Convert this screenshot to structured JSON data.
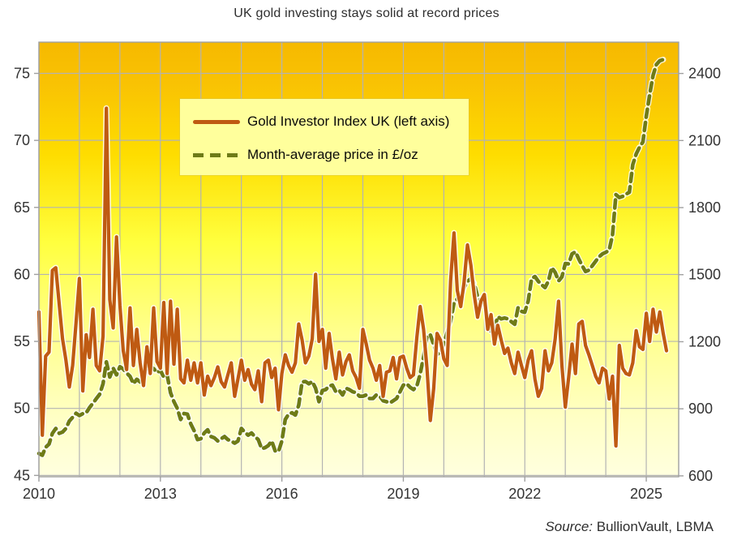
{
  "title": "UK gold investing stays solid at record prices",
  "source": {
    "label": "Source:",
    "value": "BullionVault, LBMA"
  },
  "legend": {
    "items": [
      {
        "label": "Gold Investor Index UK (left axis)",
        "line_style": "solid",
        "color": "#bf5a12"
      },
      {
        "label": "Month-average price in £/oz",
        "line_style": "dashed",
        "color": "#6e7b17"
      }
    ]
  },
  "colors": {
    "index_line": "#bf5a12",
    "price_line": "#6e7b17",
    "grid": "#b3b3b3",
    "plot_border": "#a0a0a0",
    "axis_text": "#333333",
    "halo": "#ffffff",
    "legend_bg": "#ffff9c",
    "plot_gradient": [
      "#f6b900",
      "#f9c303",
      "#fedd00",
      "#ffff3e",
      "#ffff8a",
      "#ffffc4",
      "#ffffdf"
    ]
  },
  "chart_data": {
    "type": "line",
    "title": "UK gold investing stays solid at record prices",
    "x_axis": {
      "start_year": 2010,
      "start_month": 1,
      "months_per_point": 1,
      "tick_years": [
        2010,
        2013,
        2016,
        2019,
        2022,
        2025
      ],
      "gridline_every_years": 1,
      "gridline_years": [
        2010,
        2011,
        2012,
        2013,
        2014,
        2015,
        2016,
        2017,
        2018,
        2019,
        2020,
        2021,
        2022,
        2023,
        2024,
        2025
      ],
      "range": [
        2010,
        2025.8
      ]
    },
    "left_axis": {
      "label": "Gold Investor Index UK",
      "ticks": [
        45,
        50,
        55,
        60,
        65,
        70,
        75
      ],
      "range": [
        44.9,
        77.33
      ]
    },
    "right_axis": {
      "label": "Month-average gold price in £/oz",
      "ticks": [
        600,
        900,
        1200,
        1500,
        1800,
        2100,
        2400
      ],
      "range": [
        596,
        2540
      ]
    },
    "series": [
      {
        "name": "Month-average price in £/oz",
        "axis": "right",
        "style": "dashed",
        "color": "#6e7b17",
        "monthly_values": [
          700,
          692,
          728,
          742,
          790,
          812,
          790,
          796,
          812,
          845,
          862,
          880,
          870,
          878,
          882,
          905,
          925,
          945,
          965,
          1012,
          1110,
          1042,
          1082,
          1052,
          1088,
          1078,
          1060,
          1045,
          1012,
          1032,
          1020,
          1035,
          1092,
          1088,
          1080,
          1062,
          1071,
          1042,
          1052,
          972,
          932,
          902,
          852,
          879,
          876,
          832,
          802,
          762,
          766,
          792,
          806,
          776,
          770,
          756,
          766,
          776,
          762,
          756,
          746,
          756,
          812,
          796,
          782,
          792,
          776,
          762,
          722,
          726,
          736,
          756,
          712,
          709,
          756,
          852,
          876,
          882,
          872,
          916,
          1020,
          1022,
          1012,
          1022,
          992,
          932,
          982,
          986,
          1002,
          1006,
          976,
          982,
          962,
          992,
          986,
          976,
          972,
          956,
          956,
          962,
          946,
          946,
          962,
          956,
          936,
          932,
          926,
          936,
          946,
          976,
          1006,
          1012,
          996,
          986,
          1002,
          1056,
          1132,
          1226,
          1231,
          1186,
          1144,
          1150,
          1192,
          1242,
          1292,
          1372,
          1392,
          1382,
          1442,
          1470,
          1482,
          1462,
          1402,
          1382,
          1376,
          1302,
          1246,
          1262,
          1312,
          1302,
          1306,
          1302,
          1290,
          1278,
          1352,
          1336,
          1332,
          1382,
          1482,
          1492,
          1470,
          1455,
          1442,
          1472,
          1532,
          1510,
          1472,
          1490,
          1550,
          1548,
          1593,
          1602,
          1570,
          1540,
          1514,
          1520,
          1540,
          1560,
          1580,
          1593,
          1600,
          1610,
          1677,
          1858,
          1845,
          1850,
          1860,
          1869,
          1992,
          2040,
          2070,
          2094,
          2210,
          2304,
          2391,
          2440,
          2457,
          2462,
          2468
        ]
      },
      {
        "name": "Gold Investor Index UK (left axis)",
        "axis": "left",
        "style": "solid",
        "color": "#bf5a12",
        "monthly_values": [
          57.2,
          48.0,
          53.9,
          54.2,
          60.3,
          60.5,
          57.8,
          55.2,
          53.6,
          51.6,
          53.2,
          56.4,
          59.7,
          51.3,
          55.5,
          53.8,
          57.4,
          53.2,
          52.8,
          55.4,
          72.4,
          58.1,
          56.0,
          62.8,
          57.7,
          54.3,
          52.9,
          57.5,
          53.2,
          55.9,
          53.4,
          51.7,
          54.6,
          52.6,
          57.5,
          53.5,
          53.0,
          57.9,
          52.6,
          58.0,
          53.3,
          57.4,
          52.2,
          51.9,
          53.6,
          52.1,
          53.4,
          51.9,
          53.4,
          51.0,
          52.4,
          51.7,
          52.3,
          53.1,
          52.0,
          51.6,
          52.5,
          53.4,
          50.9,
          52.2,
          53.6,
          52.1,
          52.9,
          51.8,
          51.4,
          52.8,
          50.5,
          53.4,
          53.6,
          52.3,
          53.0,
          49.9,
          52.6,
          54.0,
          53.2,
          52.7,
          53.4,
          56.3,
          55.1,
          53.4,
          53.9,
          55.2,
          60.0,
          55.0,
          55.9,
          53.0,
          55.6,
          53.7,
          52.2,
          54.2,
          52.5,
          53.5,
          54.0,
          52.8,
          52.3,
          51.5,
          55.9,
          54.8,
          53.6,
          53.0,
          52.1,
          53.2,
          50.9,
          52.7,
          52.8,
          53.8,
          52.2,
          53.8,
          53.9,
          53.0,
          52.3,
          52.5,
          55.3,
          57.6,
          55.9,
          53.0,
          49.1,
          51.5,
          55.6,
          55.1,
          53.7,
          53.2,
          59.5,
          63.1,
          58.8,
          57.6,
          59.4,
          62.2,
          60.7,
          58.5,
          56.8,
          58.0,
          58.5,
          55.9,
          57.0,
          54.8,
          56.2,
          55.1,
          54.1,
          54.5,
          53.4,
          52.6,
          54.2,
          53.2,
          52.3,
          53.6,
          54.3,
          52.2,
          50.9,
          51.5,
          54.3,
          52.8,
          53.4,
          55.2,
          58.0,
          53.2,
          50.1,
          52.3,
          54.8,
          52.6,
          56.3,
          56.5,
          54.7,
          54.0,
          53.2,
          52.4,
          51.9,
          53.0,
          52.8,
          50.7,
          52.4,
          47.2,
          54.7,
          53.0,
          52.6,
          52.5,
          53.4,
          55.8,
          54.6,
          54.4,
          57.1,
          55.0,
          57.4,
          55.7,
          57.2,
          55.6,
          54.3
        ]
      }
    ]
  }
}
